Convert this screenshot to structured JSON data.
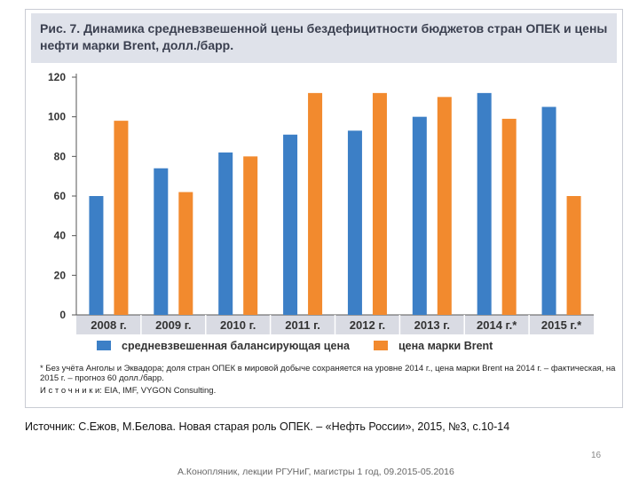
{
  "figure": {
    "title": "Рис. 7. Динамика средневзвешенной цены бездефицитности бюджетов стран ОПЕК и цены нефти марки Brent, долл./барр.",
    "footnote_1": "* Без учёта Анголы и Эквадора; доля стран ОПЕК в мировой добыче сохраняется на уровне 2014 г., цена марки Brent на 2014 г. – фактическая, на 2015 г. – прогноз 60 долл./барр.",
    "footnote_2": "И с т о ч н и к и: EIA, IMF, VYGON Consulting."
  },
  "chart_data": {
    "type": "bar",
    "categories": [
      "2008 г.",
      "2009 г.",
      "2010 г.",
      "2011 г.",
      "2012 г.",
      "2013 г.",
      "2014 г.*",
      "2015 г.*"
    ],
    "series": [
      {
        "name": "средневзвешенная балансирующая цена",
        "color": "#3c7fc6",
        "values": [
          60,
          74,
          82,
          91,
          93,
          100,
          112,
          105
        ]
      },
      {
        "name": "цена марки Brent",
        "color": "#f28a2e",
        "values": [
          98,
          62,
          80,
          112,
          112,
          110,
          99,
          60
        ]
      }
    ],
    "yticks": [
      0,
      20,
      40,
      60,
      80,
      100,
      120
    ],
    "ylim": [
      0,
      120
    ],
    "title": "Динамика средневзвешенной цены бездефицитности бюджетов стран ОПЕК и цены нефти марки Brent",
    "ylabel": "долл./барр.",
    "xlabel": ""
  },
  "source_line": "Источник: С.Ежов, М.Белова. Новая старая роль ОПЕК. – «Нефть России», 2015, №3, с.10-14",
  "page_number": "16",
  "lecture_line": "А.Конопляник, лекции РГУНиГ, магистры 1 год, 09.2015-05.2016"
}
